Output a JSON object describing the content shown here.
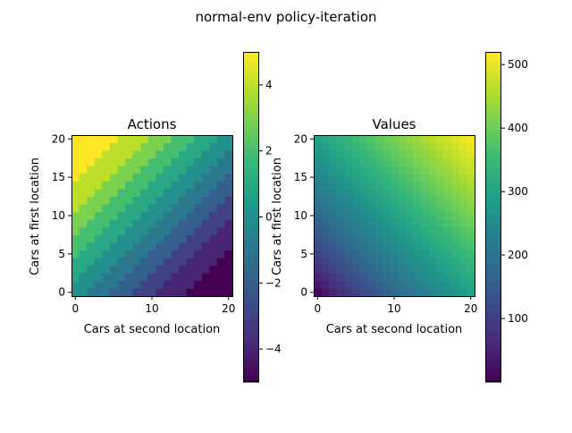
{
  "suptitle": "normal-env policy-iteration",
  "chart_data": [
    {
      "type": "heatmap",
      "title": "Actions",
      "xlabel": "Cars at second location",
      "ylabel": "Cars at first location",
      "x_ticks": [
        0,
        10,
        20
      ],
      "y_ticks": [
        0,
        5,
        10,
        15,
        20
      ],
      "xlim": [
        -0.5,
        20.5
      ],
      "ylim": [
        -0.5,
        20.5
      ],
      "colormap": "viridis",
      "colorbar": {
        "vmin": -5,
        "vmax": 5,
        "ticks": [
          -4,
          -2,
          0,
          2,
          4
        ],
        "tick_labels": [
          "−4",
          "−2",
          "0",
          "2",
          "4"
        ]
      },
      "value_rule": "action = clamp(round((row - col) * 0.32), -5, 5) for row = cars at first location, col = cars at second location; approximated from the color pattern",
      "grid_size": 21
    },
    {
      "type": "heatmap",
      "title": "Values",
      "xlabel": "Cars at second location",
      "ylabel": "Cars at first location",
      "x_ticks": [
        0,
        10,
        20
      ],
      "y_ticks": [
        0,
        5,
        10,
        15,
        20
      ],
      "xlim": [
        -0.5,
        20.5
      ],
      "ylim": [
        -0.5,
        20.5
      ],
      "colormap": "viridis",
      "colorbar": {
        "vmin": 0,
        "vmax": 520,
        "ticks": [
          100,
          200,
          300,
          400,
          500
        ],
        "tick_labels": [
          "100",
          "200",
          "300",
          "400",
          "500"
        ]
      },
      "value_rule": "value grows with total cars: approx 5 + 510 * ((row + col) / 40)^0.8; approximated from the color gradient",
      "grid_size": 21
    }
  ]
}
